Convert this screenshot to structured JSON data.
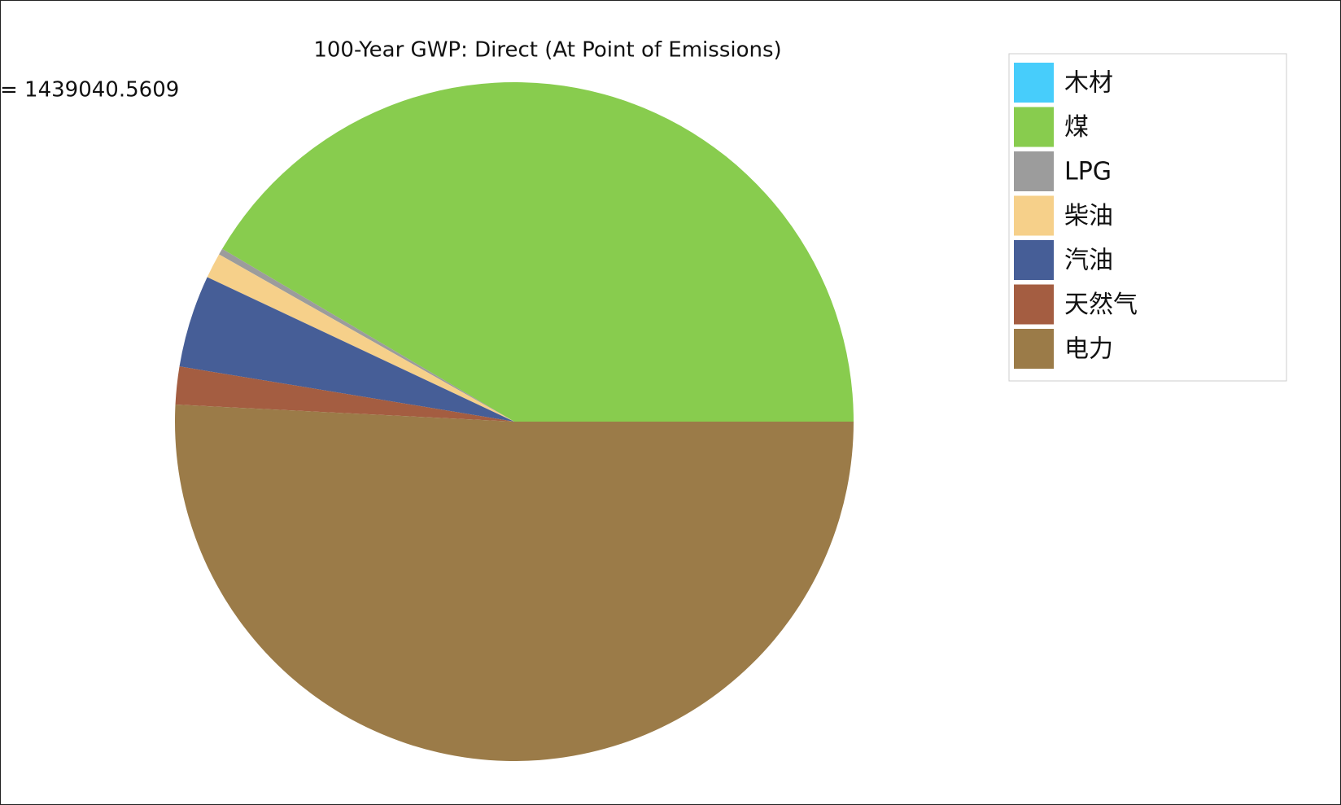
{
  "chart_data": {
    "type": "pie",
    "title": "100-Year GWP: Direct (At Point of Emissions)",
    "annotation": "= 1439040.5609",
    "categories": [
      "木材",
      "煤",
      "LPG",
      "柴油",
      "汽油",
      "天然气",
      "电力"
    ],
    "values": [
      0,
      41.5,
      0.3,
      1.2,
      4.4,
      1.8,
      50.8
    ],
    "colors": [
      "#47cdfb",
      "#88cc4e",
      "#9c9c9c",
      "#f6d08a",
      "#465e97",
      "#a45d41",
      "#9b7b48"
    ],
    "legend": "upper right"
  }
}
